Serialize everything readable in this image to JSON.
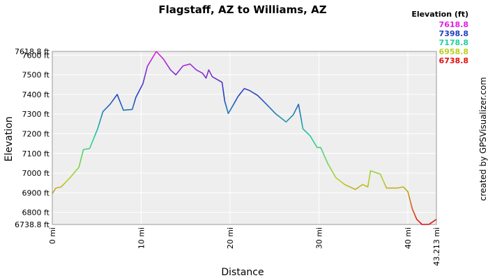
{
  "chart_data": {
    "type": "line",
    "title": "Flagstaff, AZ to Williams, AZ",
    "x_label": "Distance",
    "y_label": "Elevation",
    "credit": "created by GPSVisualizer.com",
    "color_scale": {
      "title": "Elevation (ft)",
      "items": [
        {
          "value": 7618.8,
          "color": "#e020e0"
        },
        {
          "value": 7398.8,
          "color": "#2040c0"
        },
        {
          "value": 7178.8,
          "color": "#20d0a0"
        },
        {
          "value": 6958.8,
          "color": "#b8d020"
        },
        {
          "value": 6738.8,
          "color": "#e01010"
        }
      ]
    },
    "x": [
      0,
      0.4,
      1.0,
      2.0,
      3.0,
      3.5,
      4.2,
      5.1,
      5.7,
      6.5,
      7.3,
      8.0,
      9.0,
      9.4,
      10.2,
      10.7,
      11.7,
      12.5,
      13.3,
      13.9,
      14.7,
      15.5,
      16.2,
      16.9,
      17.3,
      17.6,
      18.0,
      19.1,
      19.4,
      19.8,
      20.4,
      20.9,
      21.6,
      22.2,
      23.1,
      24.1,
      25.1,
      26.3,
      27.1,
      27.7,
      28.2,
      29.0,
      29.8,
      30.2,
      31.0,
      31.9,
      32.9,
      34.1,
      34.9,
      35.5,
      35.8,
      36.9,
      37.6,
      38.8,
      39.5,
      40.0,
      40.5,
      41.0,
      41.6,
      42.4,
      43.213
    ],
    "values": [
      6896,
      6924,
      6930,
      6977,
      7030,
      7120,
      7125,
      7225,
      7313,
      7350,
      7400,
      7320,
      7324,
      7385,
      7455,
      7543,
      7618.8,
      7580,
      7525,
      7500,
      7545,
      7555,
      7525,
      7508,
      7483,
      7525,
      7490,
      7462,
      7366,
      7303,
      7350,
      7390,
      7430,
      7420,
      7395,
      7350,
      7303,
      7260,
      7296,
      7350,
      7225,
      7190,
      7130,
      7130,
      7048,
      6977,
      6942,
      6917,
      6942,
      6930,
      7012,
      6995,
      6924,
      6924,
      6930,
      6906,
      6818,
      6765,
      6738.8,
      6740,
      6765
    ],
    "xlim": [
      0,
      43.213
    ],
    "ylim": [
      6738.8,
      7618.8
    ],
    "xticks": [
      {
        "value": 0,
        "label": "0 mi"
      },
      {
        "value": 10,
        "label": "10 mi"
      },
      {
        "value": 20,
        "label": "20 mi"
      },
      {
        "value": 30,
        "label": "30 mi"
      },
      {
        "value": 40,
        "label": "40 mi"
      },
      {
        "value": 43.213,
        "label": "43.213 mi"
      }
    ],
    "yticks": [
      {
        "value": 6738.8,
        "label": "6738.8 ft"
      },
      {
        "value": 6800,
        "label": "6800 ft"
      },
      {
        "value": 6900,
        "label": "6900 ft"
      },
      {
        "value": 7000,
        "label": "7000 ft"
      },
      {
        "value": 7100,
        "label": "7100 ft"
      },
      {
        "value": 7200,
        "label": "7200 ft"
      },
      {
        "value": 7300,
        "label": "7300 ft"
      },
      {
        "value": 7400,
        "label": "7400 ft"
      },
      {
        "value": 7500,
        "label": "7500 ft"
      },
      {
        "value": 7600,
        "label": "7600 ft"
      },
      {
        "value": 7618.8,
        "label": "7618.8 ft"
      }
    ],
    "grid": true
  }
}
